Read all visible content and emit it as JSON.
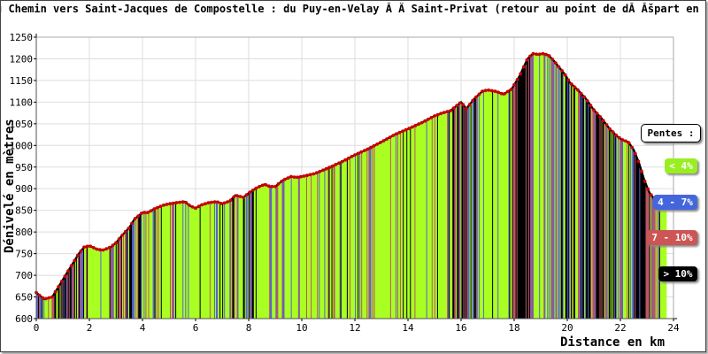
{
  "chart_data": {
    "type": "area",
    "title": "u Chemin vers Saint-Jacques de Compostelle : du Puy-en-Velay Ă Â  Saint-Privat (retour au point de dĂ Ăšpart  en ra",
    "xlabel": "Distance en km",
    "ylabel": "Dénivelé en mètres",
    "xlim": [
      0,
      24
    ],
    "ylim": [
      600,
      1250
    ],
    "x_ticks": [
      "0",
      "2",
      "4",
      "6",
      "8",
      "10",
      "12",
      "14",
      "16",
      "18",
      "20",
      "22",
      "24"
    ],
    "y_ticks": [
      "600",
      "650",
      "700",
      "750",
      "800",
      "850",
      "900",
      "950",
      "1000",
      "1050",
      "1100",
      "1150",
      "1200",
      "1250"
    ],
    "grid": true,
    "profile": {
      "x": [
        0,
        0.3,
        0.6,
        0.8,
        1.0,
        1.2,
        1.4,
        1.6,
        1.8,
        2.0,
        2.3,
        2.5,
        2.8,
        3.0,
        3.2,
        3.5,
        3.7,
        4.0,
        4.2,
        4.5,
        4.8,
        5.0,
        5.3,
        5.6,
        5.8,
        6.0,
        6.2,
        6.5,
        6.8,
        7.0,
        7.3,
        7.5,
        7.8,
        8.0,
        8.3,
        8.6,
        8.8,
        9.0,
        9.3,
        9.6,
        9.8,
        10.0,
        10.5,
        11.0,
        11.5,
        12.0,
        12.5,
        13.0,
        13.5,
        14.0,
        14.5,
        15.0,
        15.3,
        15.6,
        15.8,
        16.0,
        16.2,
        16.5,
        16.8,
        17.0,
        17.3,
        17.6,
        17.9,
        18.2,
        18.5,
        18.7,
        18.9,
        19.1,
        19.3,
        19.5,
        19.7,
        19.9,
        20.1,
        20.4,
        20.7,
        21.0,
        21.3,
        21.6,
        21.9,
        22.1,
        22.3,
        22.5,
        22.7,
        22.9,
        23.1,
        23.3,
        23.5,
        23.7
      ],
      "y": [
        660,
        645,
        650,
        670,
        690,
        710,
        730,
        750,
        765,
        768,
        760,
        758,
        765,
        775,
        790,
        810,
        830,
        845,
        845,
        855,
        862,
        865,
        868,
        870,
        860,
        855,
        862,
        868,
        870,
        865,
        872,
        885,
        880,
        890,
        902,
        910,
        905,
        905,
        920,
        928,
        926,
        928,
        935,
        948,
        962,
        978,
        992,
        1008,
        1025,
        1038,
        1052,
        1068,
        1075,
        1080,
        1090,
        1100,
        1085,
        1108,
        1125,
        1128,
        1125,
        1118,
        1130,
        1160,
        1200,
        1212,
        1210,
        1212,
        1208,
        1195,
        1180,
        1165,
        1145,
        1128,
        1108,
        1082,
        1062,
        1038,
        1020,
        1012,
        1008,
        990,
        960,
        920,
        890,
        875,
        865,
        860
      ]
    },
    "legend_title": "Pentes :",
    "legend": [
      {
        "label": "< 4%",
        "color": "#99ee22"
      },
      {
        "label": "4 - 7%",
        "color": "#4466dd"
      },
      {
        "label": "7 - 10%",
        "color": "#cc5555"
      },
      {
        "label": "> 10%",
        "color": "#000000"
      }
    ],
    "colors": {
      "flat": "#aaff22",
      "moderate": "#5566cc",
      "steep": "#bb5566",
      "very_steep": "#000000",
      "outline": "#cc0000"
    }
  }
}
